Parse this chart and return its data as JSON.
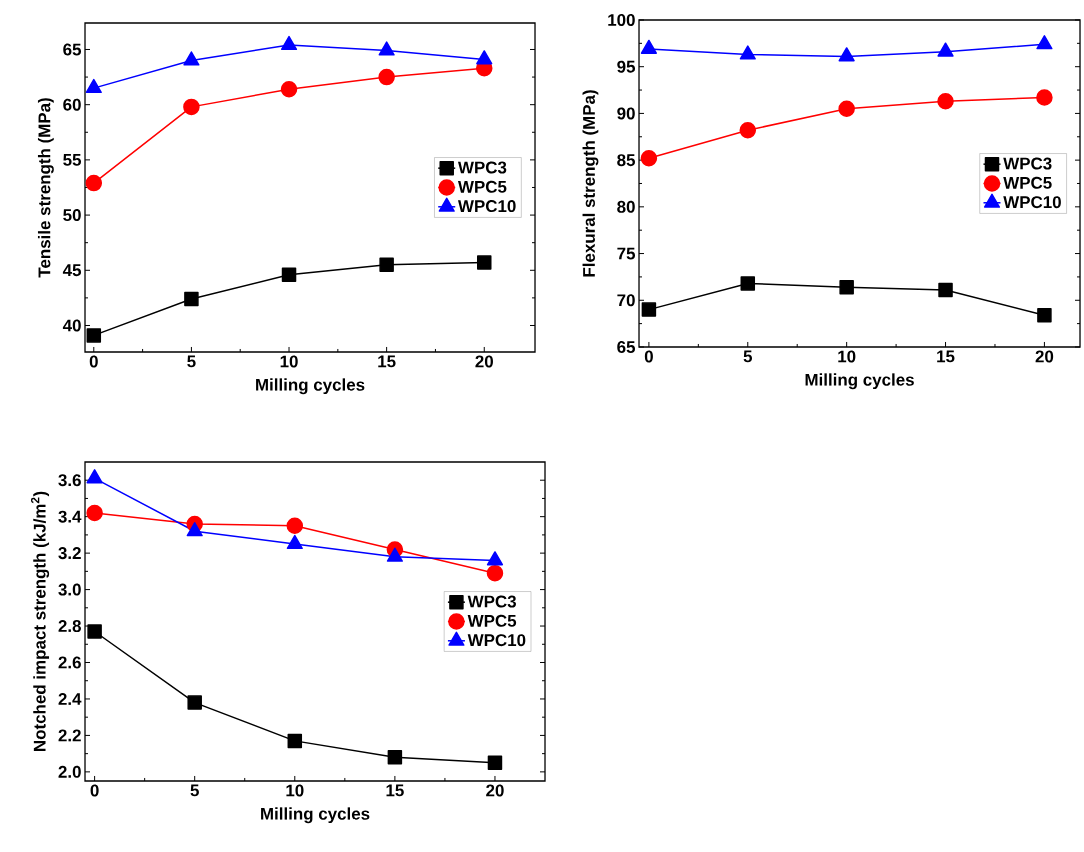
{
  "chart_data": [
    {
      "type": "line",
      "xlabel": "Milling cycles",
      "ylabel": "Tensile strength (MPa)",
      "x": [
        0,
        5,
        10,
        15,
        20
      ],
      "xlim": [
        -0.45,
        22.6
      ],
      "xticks": [
        0,
        5,
        10,
        15,
        20
      ],
      "ylim": [
        37.6,
        67.4
      ],
      "yticks": [
        40,
        45,
        50,
        55,
        60,
        65
      ],
      "legend": "right",
      "line_style": "solid",
      "series": [
        {
          "name": "WPC3",
          "color": "#000000",
          "marker": "square",
          "values": [
            39.1,
            42.4,
            44.6,
            45.5,
            45.7
          ]
        },
        {
          "name": "WPC5",
          "color": "#ff0000",
          "marker": "circle",
          "values": [
            52.9,
            59.8,
            61.4,
            62.5,
            63.3
          ]
        },
        {
          "name": "WPC10",
          "color": "#0000ff",
          "marker": "triangle",
          "values": [
            61.5,
            64.0,
            65.4,
            64.9,
            64.1
          ]
        }
      ]
    },
    {
      "type": "line",
      "xlabel": "Milling cycles",
      "ylabel": "Flexural strength (MPa)",
      "x": [
        0,
        5,
        10,
        15,
        20
      ],
      "xlim": [
        -0.5,
        21.8
      ],
      "xticks": [
        0,
        5,
        10,
        15,
        20
      ],
      "ylim": [
        65,
        100
      ],
      "yticks": [
        65,
        70,
        75,
        80,
        85,
        90,
        95,
        100
      ],
      "legend": "right",
      "line_style": "solid",
      "series": [
        {
          "name": "WPC3",
          "color": "#000000",
          "marker": "square",
          "values": [
            69.0,
            71.8,
            71.4,
            71.1,
            68.4
          ]
        },
        {
          "name": "WPC5",
          "color": "#ff0000",
          "marker": "circle",
          "values": [
            85.2,
            88.2,
            90.5,
            91.3,
            91.7
          ]
        },
        {
          "name": "WPC10",
          "color": "#0000ff",
          "marker": "triangle",
          "values": [
            96.9,
            96.3,
            96.1,
            96.6,
            97.4
          ]
        }
      ]
    },
    {
      "type": "line",
      "xlabel": "Milling cycles",
      "ylabel": "Notched impact strength (kJ/m$^{2}$)",
      "x": [
        0,
        5,
        10,
        15,
        20
      ],
      "xlim": [
        -0.48,
        22.5
      ],
      "xticks": [
        0,
        5,
        10,
        15,
        20
      ],
      "ylim": [
        1.95,
        3.7
      ],
      "yticks": [
        {
          "value": 2.0,
          "label": "2.0"
        },
        {
          "value": 2.2,
          "label": "2.2"
        },
        {
          "value": 2.4,
          "label": "2.4"
        },
        {
          "value": 2.6,
          "label": "2.6"
        },
        {
          "value": 2.8,
          "label": "2.8"
        },
        {
          "value": 3.0,
          "label": "3.0"
        },
        {
          "value": 3.2,
          "label": "3.2"
        },
        {
          "value": 3.4,
          "label": "3.4"
        },
        {
          "value": 3.6,
          "label": "3.6"
        }
      ],
      "legend": "right",
      "line_style": "solid",
      "series": [
        {
          "name": "WPC3",
          "color": "#000000",
          "marker": "square",
          "values": [
            2.77,
            2.38,
            2.17,
            2.08,
            2.05
          ]
        },
        {
          "name": "WPC5",
          "color": "#ff0000",
          "marker": "circle",
          "values": [
            3.42,
            3.36,
            3.35,
            3.22,
            3.09
          ]
        },
        {
          "name": "WPC10",
          "color": "#0000ff",
          "marker": "triangle",
          "values": [
            3.61,
            3.32,
            3.25,
            3.18,
            3.16
          ]
        }
      ]
    }
  ]
}
